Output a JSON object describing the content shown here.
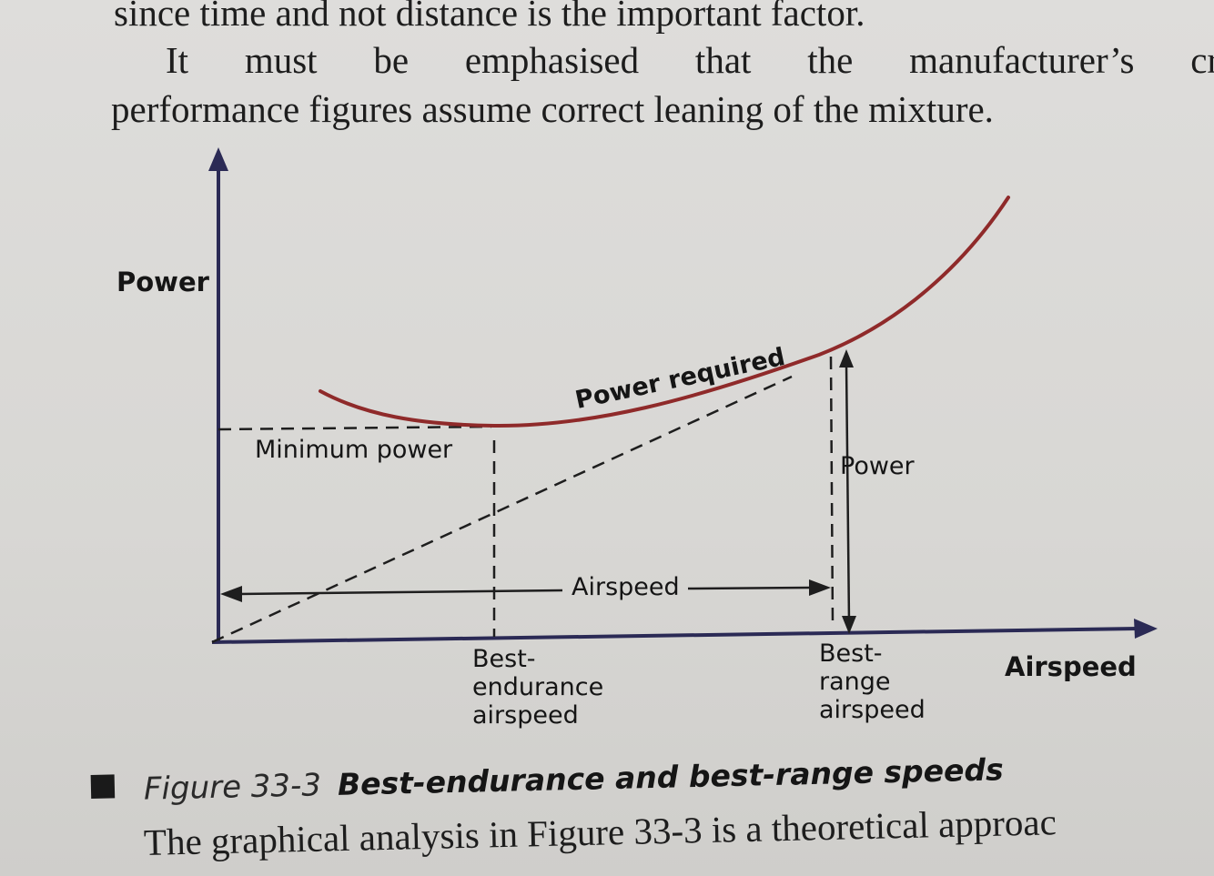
{
  "text": {
    "line1": "since time and not distance is the important factor.",
    "line2_words": [
      "It",
      "must",
      "be",
      "emphasised",
      "that",
      "the",
      "manufacturer’s",
      "crui"
    ],
    "line3": "performance figures assume correct leaning of the mixture.",
    "last_line": "The graphical analysis in Figure 33-3 is a theoretical approac"
  },
  "diagram": {
    "y_axis_label": "Power",
    "x_axis_label": "Airspeed",
    "curve_label": "Power required",
    "min_power_label": "Minimum power",
    "power_marker_label": "Power",
    "airspeed_marker_label": "Airspeed",
    "best_endurance_label": [
      "Best-",
      "endurance",
      "airspeed"
    ],
    "best_range_label": [
      "Best-",
      "range",
      "airspeed"
    ],
    "colors": {
      "curve": "#8f2a2a",
      "axes": "#2b2a55",
      "lines": "#1e1e1e"
    }
  },
  "caption": {
    "number": "Figure 33-3",
    "title": "Best-endurance and best-range speeds"
  }
}
